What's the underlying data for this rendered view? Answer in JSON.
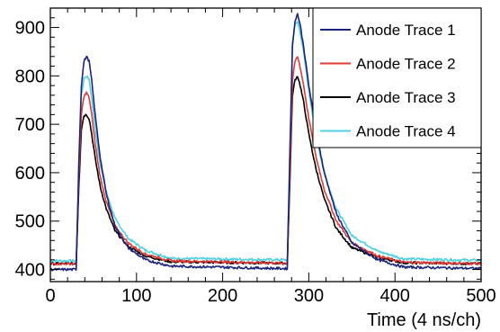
{
  "chart_data": {
    "type": "line",
    "title": "",
    "xlabel": "Time (4 ns/ch)",
    "ylabel": "",
    "xlim": [
      0,
      500
    ],
    "ylim": [
      375,
      940
    ],
    "xticks": [
      0,
      100,
      200,
      300,
      400,
      500
    ],
    "yticks": [
      400,
      500,
      600,
      700,
      800,
      900
    ],
    "grid": false,
    "legend_position": "top-right",
    "series": [
      {
        "name": "Anode Trace 1",
        "color": "#1a237e",
        "baseline": 400,
        "x": [
          0,
          30,
          33,
          36,
          39,
          42,
          45,
          48,
          52,
          58,
          65,
          75,
          90,
          110,
          140,
          270,
          275,
          278,
          281,
          284,
          287,
          290,
          294,
          300,
          308,
          318,
          332,
          350,
          380,
          410,
          500
        ],
        "y": [
          400,
          400,
          620,
          780,
          830,
          840,
          830,
          790,
          720,
          630,
          555,
          490,
          445,
          420,
          407,
          402,
          402,
          640,
          860,
          915,
          928,
          905,
          860,
          780,
          690,
          600,
          515,
          455,
          420,
          405,
          402
        ]
      },
      {
        "name": "Anode Trace 2",
        "color": "#e53935",
        "baseline": 412,
        "x": [
          0,
          30,
          33,
          36,
          39,
          42,
          45,
          48,
          52,
          58,
          65,
          75,
          90,
          110,
          140,
          270,
          275,
          278,
          281,
          284,
          287,
          290,
          294,
          300,
          308,
          318,
          332,
          350,
          380,
          410,
          500
        ],
        "y": [
          412,
          412,
          590,
          720,
          758,
          765,
          755,
          720,
          660,
          590,
          540,
          490,
          455,
          432,
          418,
          413,
          413,
          600,
          790,
          830,
          840,
          818,
          780,
          712,
          635,
          565,
          500,
          455,
          428,
          415,
          412
        ]
      },
      {
        "name": "Anode Trace 3",
        "color": "#000000",
        "baseline": 412,
        "x": [
          0,
          30,
          33,
          36,
          39,
          42,
          45,
          48,
          52,
          58,
          65,
          75,
          90,
          110,
          140,
          270,
          275,
          278,
          281,
          284,
          287,
          290,
          294,
          300,
          308,
          318,
          332,
          350,
          380,
          410,
          500
        ],
        "y": [
          412,
          412,
          570,
          690,
          718,
          720,
          712,
          680,
          630,
          570,
          525,
          480,
          448,
          428,
          416,
          413,
          413,
          580,
          760,
          792,
          800,
          780,
          745,
          680,
          610,
          545,
          485,
          445,
          425,
          414,
          412
        ]
      },
      {
        "name": "Anode Trace 4",
        "color": "#4dd0e1",
        "baseline": 418,
        "x": [
          0,
          30,
          33,
          36,
          39,
          42,
          45,
          48,
          52,
          58,
          65,
          75,
          90,
          110,
          140,
          270,
          275,
          278,
          281,
          284,
          287,
          290,
          294,
          300,
          308,
          318,
          332,
          350,
          380,
          410,
          500
        ],
        "y": [
          418,
          418,
          600,
          760,
          795,
          800,
          792,
          755,
          692,
          615,
          560,
          505,
          465,
          440,
          423,
          420,
          420,
          640,
          870,
          905,
          912,
          890,
          848,
          770,
          680,
          598,
          525,
          470,
          438,
          422,
          419
        ]
      }
    ]
  }
}
